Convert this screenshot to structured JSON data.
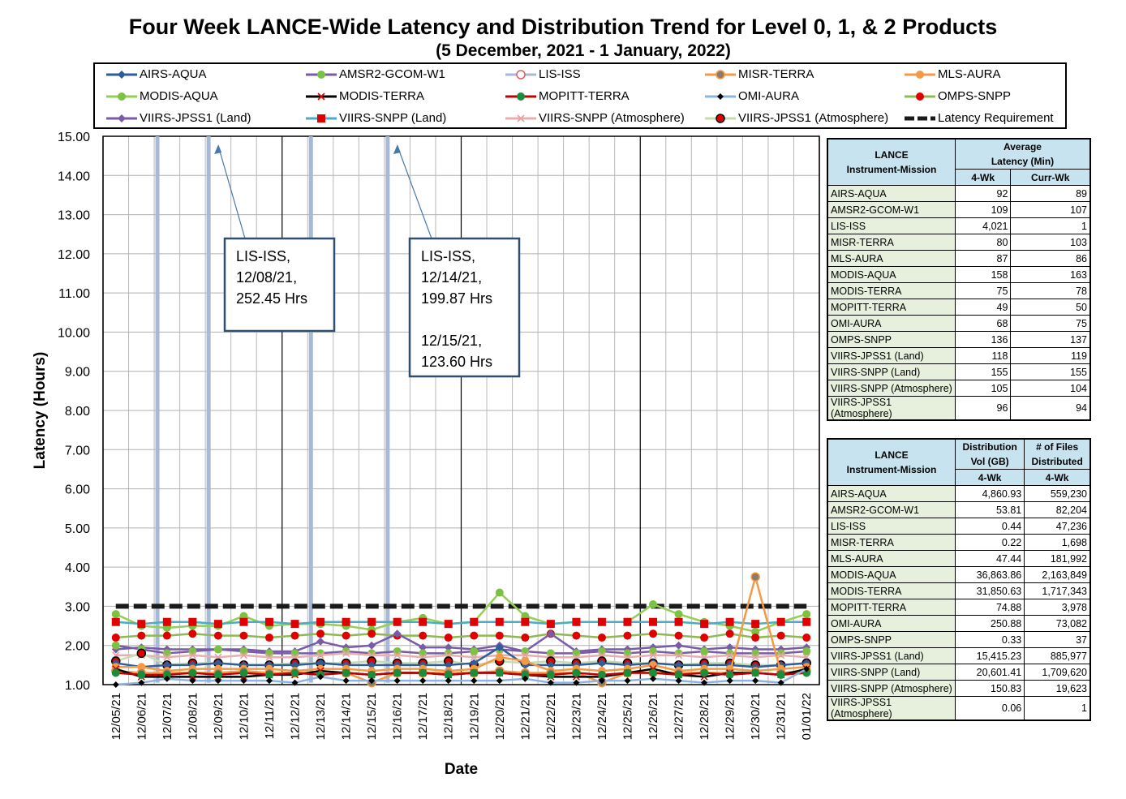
{
  "title": "Four Week LANCE-Wide Latency and Distribution Trend for Level 0, 1, & 2 Products",
  "subtitle": "(5  December,  2021  -  1  January, 2022)",
  "legend": [
    {
      "name": "AIRS-AQUA",
      "color": "#2e5d9a",
      "marker": "diamond"
    },
    {
      "name": "AMSR2-GCOM-W1",
      "color": "#7a5ba8",
      "marker": "circle-green"
    },
    {
      "name": "LIS-ISS",
      "color": "#a7b9d8",
      "marker": "circle-open-red"
    },
    {
      "name": "MISR-TERRA",
      "color": "#f39a46",
      "marker": "circle-gray"
    },
    {
      "name": "MLS-AURA",
      "color": "#f39a46",
      "marker": "circle-orange"
    },
    {
      "name": "MODIS-AQUA",
      "color": "#92cf54",
      "marker": "circle-green"
    },
    {
      "name": "MODIS-TERRA",
      "color": "#000000",
      "marker": "x-red"
    },
    {
      "name": "MOPITT-TERRA",
      "color": "#c00000",
      "marker": "circle-darkgreen"
    },
    {
      "name": "OMI-AURA",
      "color": "#8db3e2",
      "marker": "diamond-black"
    },
    {
      "name": "OMPS-SNPP",
      "color": "#8dbb50",
      "marker": "circle-red"
    },
    {
      "name": "VIIRS-JPSS1 (Land)",
      "color": "#7a5ba8",
      "marker": "diamond-purple"
    },
    {
      "name": "VIIRS-SNPP (Land)",
      "color": "#4bacc6",
      "marker": "square-red"
    },
    {
      "name": "VIIRS-SNPP (Atmosphere)",
      "color": "#e6b0b0",
      "marker": "x-pink"
    },
    {
      "name": "VIIRS-JPSS1 (Atmosphere)",
      "color": "#c6dcae",
      "marker": "circle-red-black"
    },
    {
      "name": "Latency Requirement",
      "color": "#1a1a1a",
      "marker": "dash"
    }
  ],
  "chart_data": {
    "type": "line",
    "title": "Four Week LANCE-Wide Latency and Distribution Trend for Level 0, 1, & 2 Products",
    "xlabel": "Date",
    "ylabel": "Latency (Hours)",
    "ylim": [
      1.0,
      15.0
    ],
    "yticks": [
      "1.00",
      "2.00",
      "3.00",
      "4.00",
      "5.00",
      "6.00",
      "7.00",
      "8.00",
      "9.00",
      "10.00",
      "11.00",
      "12.00",
      "13.00",
      "14.00",
      "15.00"
    ],
    "categories": [
      "12/05/21",
      "12/06/21",
      "12/07/21",
      "12/08/21",
      "12/09/21",
      "12/10/21",
      "12/11/21",
      "12/12/21",
      "12/13/21",
      "12/14/21",
      "12/15/21",
      "12/16/21",
      "12/17/21",
      "12/18/21",
      "12/19/21",
      "12/20/21",
      "12/21/21",
      "12/22/21",
      "12/23/21",
      "12/24/21",
      "12/25/21",
      "12/26/21",
      "12/27/21",
      "12/28/21",
      "12/29/21",
      "12/30/21",
      "12/31/21",
      "01/01/22"
    ],
    "grid": true,
    "series": [
      {
        "name": "Latency Requirement",
        "color": "#1a1a1a",
        "values": [
          3.0,
          3.0,
          3.0,
          3.0,
          3.0,
          3.0,
          3.0,
          3.0,
          3.0,
          3.0,
          3.0,
          3.0,
          3.0,
          3.0,
          3.0,
          3.0,
          3.0,
          3.0,
          3.0,
          3.0,
          3.0,
          3.0,
          3.0,
          3.0,
          3.0,
          3.0,
          3.0,
          3.0
        ]
      },
      {
        "name": "MODIS-AQUA",
        "color": "#92cf54",
        "values": [
          2.8,
          2.5,
          2.45,
          2.5,
          2.5,
          2.75,
          2.5,
          2.55,
          2.55,
          2.5,
          2.4,
          2.6,
          2.7,
          2.55,
          2.6,
          3.35,
          2.75,
          2.55,
          2.6,
          2.6,
          2.6,
          3.05,
          2.8,
          2.6,
          2.5,
          2.35,
          2.6,
          2.8
        ]
      },
      {
        "name": "VIIRS-SNPP (Land)",
        "color": "#4bacc6",
        "values": [
          2.6,
          2.55,
          2.6,
          2.6,
          2.55,
          2.6,
          2.6,
          2.55,
          2.6,
          2.6,
          2.6,
          2.6,
          2.6,
          2.55,
          2.6,
          2.6,
          2.6,
          2.55,
          2.6,
          2.6,
          2.6,
          2.6,
          2.6,
          2.55,
          2.6,
          2.55,
          2.6,
          2.6
        ]
      },
      {
        "name": "OMPS-SNPP",
        "color": "#8dbb50",
        "values": [
          2.2,
          2.25,
          2.25,
          2.3,
          2.25,
          2.25,
          2.2,
          2.25,
          2.3,
          2.25,
          2.3,
          2.25,
          2.25,
          2.2,
          2.25,
          2.25,
          2.2,
          2.3,
          2.25,
          2.2,
          2.25,
          2.3,
          2.25,
          2.2,
          2.3,
          2.2,
          2.25,
          2.2
        ]
      },
      {
        "name": "VIIRS-JPSS1 (Land)",
        "color": "#7a5ba8",
        "values": [
          1.9,
          1.95,
          1.9,
          1.9,
          1.9,
          1.9,
          1.85,
          1.85,
          2.1,
          1.95,
          2.0,
          2.3,
          1.95,
          1.95,
          1.9,
          2.0,
          1.85,
          2.3,
          1.85,
          1.9,
          1.9,
          1.95,
          2.0,
          1.9,
          1.95,
          1.9,
          1.9,
          1.95
        ]
      },
      {
        "name": "AMSR2-GCOM-W1",
        "color": "#7a5ba8",
        "values": [
          2.0,
          1.9,
          1.8,
          1.85,
          1.9,
          1.85,
          1.8,
          1.8,
          1.8,
          1.85,
          1.8,
          1.85,
          1.8,
          1.8,
          1.85,
          1.9,
          1.85,
          1.8,
          1.8,
          1.85,
          1.8,
          1.85,
          1.8,
          1.85,
          1.8,
          1.8,
          1.8,
          1.85
        ]
      },
      {
        "name": "VIIRS-SNPP (Atmosphere)",
        "color": "#e6b0b0",
        "values": [
          1.75,
          1.75,
          1.7,
          1.75,
          1.7,
          1.75,
          1.7,
          1.7,
          1.75,
          1.8,
          1.75,
          1.75,
          1.7,
          1.75,
          1.7,
          1.75,
          1.75,
          1.7,
          1.7,
          1.75,
          1.7,
          1.75,
          1.75,
          1.7,
          1.75,
          1.7,
          1.75,
          1.7
        ]
      },
      {
        "name": "VIIRS-JPSS1 (Atmosphere)",
        "color": "#c6dcae",
        "values": [
          1.6,
          1.8,
          1.5,
          1.55,
          1.55,
          1.5,
          1.5,
          1.55,
          1.55,
          1.55,
          1.6,
          1.55,
          1.55,
          1.6,
          1.5,
          1.6,
          1.55,
          1.6,
          1.55,
          1.6,
          1.55,
          1.55,
          1.5,
          1.55,
          1.55,
          1.5,
          1.5,
          1.55
        ]
      },
      {
        "name": "AIRS-AQUA",
        "color": "#2e5d9a",
        "values": [
          1.55,
          1.45,
          1.5,
          1.5,
          1.55,
          1.5,
          1.5,
          1.5,
          1.55,
          1.5,
          1.5,
          1.5,
          1.5,
          1.5,
          1.55,
          1.95,
          1.5,
          1.5,
          1.5,
          1.55,
          1.5,
          1.55,
          1.5,
          1.5,
          1.5,
          1.45,
          1.5,
          1.55
        ]
      },
      {
        "name": "MLS-AURA",
        "color": "#f39a46",
        "values": [
          1.45,
          1.45,
          1.35,
          1.4,
          1.4,
          1.4,
          1.4,
          1.35,
          1.4,
          1.4,
          1.35,
          1.4,
          1.4,
          1.35,
          1.4,
          1.7,
          1.6,
          1.35,
          1.4,
          1.35,
          1.4,
          1.5,
          1.35,
          1.4,
          1.4,
          1.35,
          1.4,
          1.45
        ]
      },
      {
        "name": "MISR-TERRA",
        "color": "#f39a46",
        "values": [
          1.35,
          1.3,
          1.3,
          1.3,
          1.3,
          1.35,
          1.3,
          1.3,
          1.3,
          1.3,
          1.05,
          1.3,
          1.3,
          1.3,
          1.3,
          1.35,
          1.3,
          1.3,
          1.3,
          1.05,
          1.3,
          1.3,
          1.3,
          1.3,
          1.3,
          3.75,
          1.3,
          1.35
        ]
      },
      {
        "name": "MODIS-TERRA",
        "color": "#000000",
        "values": [
          1.4,
          1.2,
          1.2,
          1.2,
          1.2,
          1.2,
          1.25,
          1.25,
          1.35,
          1.3,
          1.25,
          1.3,
          1.3,
          1.25,
          1.3,
          1.3,
          1.25,
          1.2,
          1.2,
          1.2,
          1.3,
          1.4,
          1.25,
          1.2,
          1.3,
          1.3,
          1.25,
          1.4
        ]
      },
      {
        "name": "MOPITT-TERRA",
        "color": "#c00000",
        "values": [
          1.3,
          1.25,
          1.25,
          1.3,
          1.25,
          1.3,
          1.25,
          1.3,
          1.25,
          1.3,
          1.25,
          1.3,
          1.3,
          1.25,
          1.3,
          1.3,
          1.25,
          1.25,
          1.3,
          1.25,
          1.3,
          1.3,
          1.25,
          1.3,
          1.25,
          1.3,
          1.25,
          1.3
        ]
      },
      {
        "name": "OMI-AURA",
        "color": "#8db3e2",
        "values": [
          1.0,
          1.05,
          1.15,
          1.1,
          1.1,
          1.1,
          1.1,
          1.05,
          1.2,
          1.1,
          1.1,
          1.1,
          1.1,
          1.1,
          1.1,
          1.1,
          1.15,
          1.05,
          1.05,
          1.1,
          1.1,
          1.15,
          1.1,
          1.05,
          1.1,
          1.1,
          1.05,
          1.4
        ]
      }
    ],
    "lis_iss_spikes": [
      "12/07/21",
      "12/09/21",
      "12/13/21",
      "12/16/21"
    ],
    "annotations": [
      {
        "lines": [
          "LIS-ISS,",
          "12/08/21,",
          "252.45 Hrs"
        ],
        "points_to": "12/09/21"
      },
      {
        "lines": [
          "LIS-ISS,",
          "12/14/21,",
          "199.87 Hrs",
          "",
          "12/15/21,",
          "123.60 Hrs"
        ],
        "points_to": "12/16/21"
      }
    ]
  },
  "table1": {
    "h1": "LANCE",
    "h1b": "Instrument-Mission",
    "h2": "Average",
    "h2b": "Latency (Min)",
    "c1": "4-Wk",
    "c2": "Curr-Wk",
    "rows": [
      [
        "AIRS-AQUA",
        "92",
        "89"
      ],
      [
        "AMSR2-GCOM-W1",
        "109",
        "107"
      ],
      [
        "LIS-ISS",
        "4,021",
        "1"
      ],
      [
        "MISR-TERRA",
        "80",
        "103"
      ],
      [
        "MLS-AURA",
        "87",
        "86"
      ],
      [
        "MODIS-AQUA",
        "158",
        "163"
      ],
      [
        "MODIS-TERRA",
        "75",
        "78"
      ],
      [
        "MOPITT-TERRA",
        "49",
        "50"
      ],
      [
        "OMI-AURA",
        "68",
        "75"
      ],
      [
        "OMPS-SNPP",
        "136",
        "137"
      ],
      [
        "VIIRS-JPSS1 (Land)",
        "118",
        "119"
      ],
      [
        "VIIRS-SNPP (Land)",
        "155",
        "155"
      ],
      [
        "VIIRS-SNPP (Atmosphere)",
        "105",
        "104"
      ],
      [
        "VIIRS-JPSS1 (Atmosphere)",
        "96",
        "94"
      ]
    ]
  },
  "table2": {
    "h1": "LANCE",
    "h1b": "Instrument-Mission",
    "h2": "Distribution",
    "h2b": "Vol (GB)",
    "h3": "# of Files",
    "h3b": "Distributed",
    "c1": "4-Wk",
    "c2": "4-Wk",
    "rows": [
      [
        "AIRS-AQUA",
        "4,860.93",
        "559,230"
      ],
      [
        "AMSR2-GCOM-W1",
        "53.81",
        "82,204"
      ],
      [
        "LIS-ISS",
        "0.44",
        "47,236"
      ],
      [
        "MISR-TERRA",
        "0.22",
        "1,698"
      ],
      [
        "MLS-AURA",
        "47.44",
        "181,992"
      ],
      [
        "MODIS-AQUA",
        "36,863.86",
        "2,163,849"
      ],
      [
        "MODIS-TERRA",
        "31,850.63",
        "1,717,343"
      ],
      [
        "MOPITT-TERRA",
        "74.88",
        "3,978"
      ],
      [
        "OMI-AURA",
        "250.88",
        "73,082"
      ],
      [
        "OMPS-SNPP",
        "0.33",
        "37"
      ],
      [
        "VIIRS-JPSS1 (Land)",
        "15,415.23",
        "885,977"
      ],
      [
        "VIIRS-SNPP (Land)",
        "20,601.41",
        "1,709,620"
      ],
      [
        "VIIRS-SNPP (Atmosphere)",
        "150.83",
        "19,623"
      ],
      [
        "VIIRS-JPSS1 (Atmosphere)",
        "0.06",
        "1"
      ]
    ]
  }
}
